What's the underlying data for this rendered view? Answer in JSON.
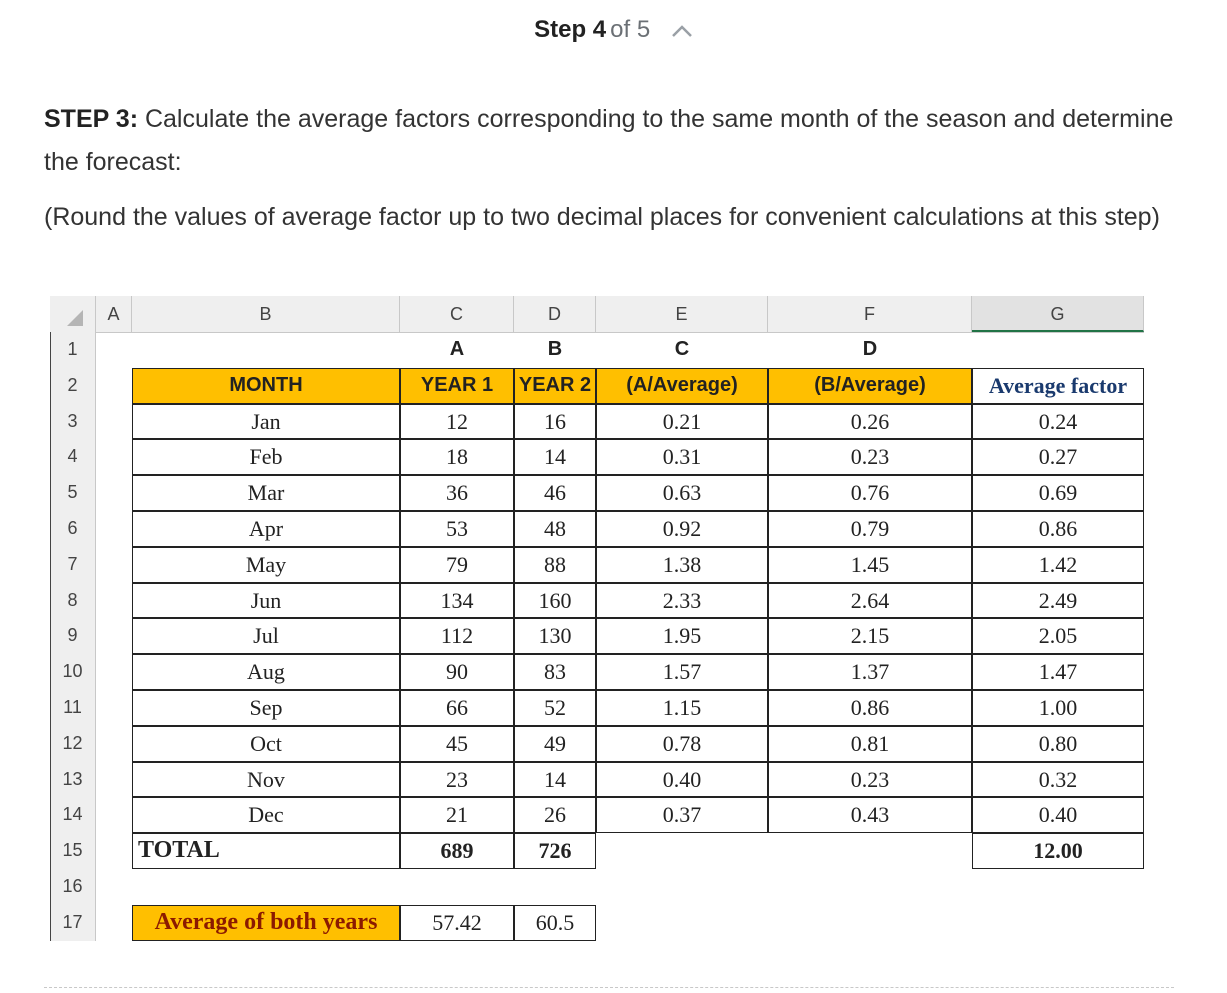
{
  "step": {
    "label": "Step 4",
    "of": "of 5"
  },
  "paragraph1": {
    "bold": "STEP 3:",
    "text": " Calculate the average factors corresponding to the same month of the season and determine the forecast:"
  },
  "paragraph2": {
    "text": "(Round the values of average factor up to two decimal places for convenient calculations at this step)"
  },
  "sheet": {
    "column_headers": [
      "A",
      "B",
      "C",
      "D",
      "E",
      "F",
      "G"
    ],
    "row_numbers": [
      "1",
      "2",
      "3",
      "4",
      "5",
      "6",
      "7",
      "8",
      "9",
      "10",
      "11",
      "12",
      "13",
      "14",
      "15",
      "16",
      "17"
    ],
    "row1": [
      "A",
      "B",
      "C",
      "D"
    ],
    "headers": [
      "MONTH",
      "YEAR 1",
      "YEAR 2",
      "(A/Average)",
      "(B/Average)",
      "Average factor"
    ],
    "rows": [
      [
        "Jan",
        "12",
        "16",
        "0.21",
        "0.26",
        "0.24"
      ],
      [
        "Feb",
        "18",
        "14",
        "0.31",
        "0.23",
        "0.27"
      ],
      [
        "Mar",
        "36",
        "46",
        "0.63",
        "0.76",
        "0.69"
      ],
      [
        "Apr",
        "53",
        "48",
        "0.92",
        "0.79",
        "0.86"
      ],
      [
        "May",
        "79",
        "88",
        "1.38",
        "1.45",
        "1.42"
      ],
      [
        "Jun",
        "134",
        "160",
        "2.33",
        "2.64",
        "2.49"
      ],
      [
        "Jul",
        "112",
        "130",
        "1.95",
        "2.15",
        "2.05"
      ],
      [
        "Aug",
        "90",
        "83",
        "1.57",
        "1.37",
        "1.47"
      ],
      [
        "Sep",
        "66",
        "52",
        "1.15",
        "0.86",
        "1.00"
      ],
      [
        "Oct",
        "45",
        "49",
        "0.78",
        "0.81",
        "0.80"
      ],
      [
        "Nov",
        "23",
        "14",
        "0.40",
        "0.23",
        "0.32"
      ],
      [
        "Dec",
        "21",
        "26",
        "0.37",
        "0.43",
        "0.40"
      ]
    ],
    "total": {
      "label": "TOTAL",
      "year1": "689",
      "year2": "726",
      "factor": "12.00"
    },
    "average": {
      "label": "Average of both years",
      "year1": "57.42",
      "year2": "60.5"
    }
  },
  "colors": {
    "header_orange": "#ffbf00",
    "sheet_header_gray": "#efefef"
  }
}
